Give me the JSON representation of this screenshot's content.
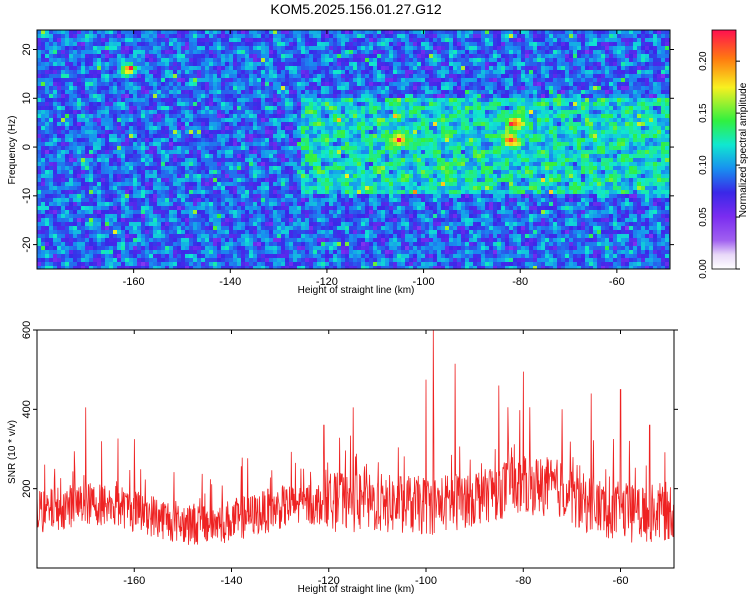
{
  "title": "KOM5.2025.156.01.27.G12",
  "colors": {
    "snr_line": "#ee2222",
    "colormap": [
      "#ffffff",
      "#e8d8f8",
      "#a060f0",
      "#7a2cf0",
      "#3a28e8",
      "#1890f0",
      "#10e8d0",
      "#30f040",
      "#f8f020",
      "#ff7a10",
      "#ff1050"
    ]
  },
  "chart_data": [
    {
      "type": "heatmap",
      "xlabel": "Height of straight line (km)",
      "ylabel": "Frequency (Hz)",
      "xlim": [
        -180,
        -49
      ],
      "ylim": [
        -25,
        24
      ],
      "xticks": [
        -160,
        -140,
        -120,
        -100,
        -80,
        -60
      ],
      "yticks": [
        -20,
        -10,
        0,
        10,
        20
      ],
      "colorbar": {
        "label": "Normalized spectral amplitude",
        "range": [
          0,
          0.23
        ],
        "ticks": [
          "0.00",
          "0.05",
          "0.10",
          "0.15",
          "0.20"
        ]
      },
      "hotspots": [
        {
          "x": -161,
          "y": 16,
          "v": 0.2
        },
        {
          "x": -105,
          "y": 1.5,
          "v": 0.21
        },
        {
          "x": -82,
          "y": 1.5,
          "v": 0.22
        },
        {
          "x": -81,
          "y": 5,
          "v": 0.21
        },
        {
          "x": -95,
          "y": -5,
          "v": 0.15
        },
        {
          "x": -57,
          "y": 3,
          "v": 0.13
        },
        {
          "x": -62,
          "y": 3,
          "v": 0.12
        },
        {
          "x": -101,
          "y": 1,
          "v": 0.14
        },
        {
          "x": -90,
          "y": -8,
          "v": 0.13
        }
      ]
    },
    {
      "type": "line",
      "xlabel": "Height of straight line (km)",
      "ylabel": "SNR (10 * v/v)",
      "xlim": [
        -180,
        -49
      ],
      "ylim": [
        0,
        600
      ],
      "xticks": [
        -160,
        -140,
        -120,
        -100,
        -80,
        -60
      ],
      "yticks": [
        200,
        400,
        600
      ],
      "series": [
        {
          "x_start": -180,
          "x_end": -49,
          "peaks": [
            {
              "x": -170,
              "y": 405
            },
            {
              "x": -160,
              "y": 325
            },
            {
              "x": -121,
              "y": 360
            },
            {
              "x": -115,
              "y": 405
            },
            {
              "x": -100,
              "y": 475
            },
            {
              "x": -98.5,
              "y": 600
            },
            {
              "x": -94,
              "y": 515
            },
            {
              "x": -85,
              "y": 460
            },
            {
              "x": -80,
              "y": 495
            },
            {
              "x": -72,
              "y": 400
            },
            {
              "x": -66,
              "y": 440
            },
            {
              "x": -60,
              "y": 450
            },
            {
              "x": -54,
              "y": 360
            }
          ]
        }
      ]
    }
  ]
}
